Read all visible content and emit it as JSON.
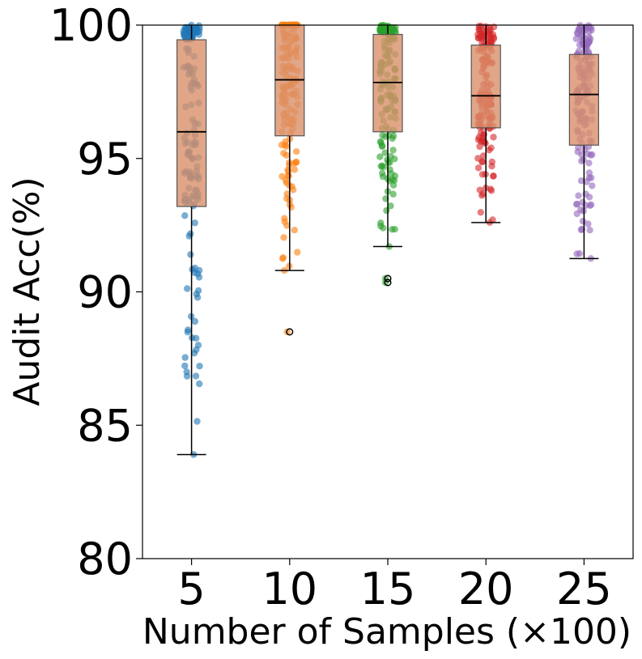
{
  "chart_data": {
    "type": "box",
    "title": "",
    "xlabel": "Number of Samples (×100)",
    "ylabel": "Audit Acc(%)",
    "ylim": [
      80,
      100
    ],
    "yticks": [
      80,
      85,
      90,
      95,
      100
    ],
    "categories": [
      "5",
      "10",
      "15",
      "20",
      "25"
    ],
    "box_fill": "#d9906a",
    "box_stroke": "#555555",
    "median_color": "#000000",
    "point_colors": [
      "#1f77b4",
      "#ff7f0e",
      "#2ca02c",
      "#d62728",
      "#9467bd"
    ],
    "boxes": [
      {
        "category": "5",
        "whisker_low": 83.9,
        "q1": 93.2,
        "median": 96.0,
        "q3": 99.45,
        "whisker_high": 100.0,
        "outliers": []
      },
      {
        "category": "10",
        "whisker_low": 90.8,
        "q1": 95.85,
        "median": 97.95,
        "q3": 100.0,
        "whisker_high": 100.0,
        "outliers": [
          88.5
        ]
      },
      {
        "category": "15",
        "whisker_low": 91.7,
        "q1": 96.0,
        "median": 97.85,
        "q3": 99.65,
        "whisker_high": 100.0,
        "outliers": [
          90.5,
          90.35
        ]
      },
      {
        "category": "20",
        "whisker_low": 92.6,
        "q1": 96.15,
        "median": 97.35,
        "q3": 99.25,
        "whisker_high": 100.0,
        "outliers": []
      },
      {
        "category": "25",
        "whisker_low": 91.25,
        "q1": 95.5,
        "median": 97.4,
        "q3": 98.9,
        "whisker_high": 100.0,
        "outliers": []
      }
    ],
    "points_per_group": 150
  }
}
